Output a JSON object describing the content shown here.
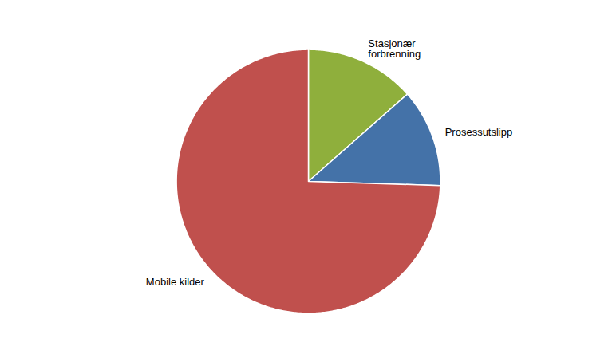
{
  "chart_data": {
    "type": "pie",
    "categories": [
      "Stasjonær\nforbrenning",
      "Prosessutslipp",
      "Mobile kilder"
    ],
    "values": [
      13.5,
      12.0,
      74.5
    ],
    "colors": [
      "#8faf3c",
      "#4472a8",
      "#c0504d"
    ]
  }
}
